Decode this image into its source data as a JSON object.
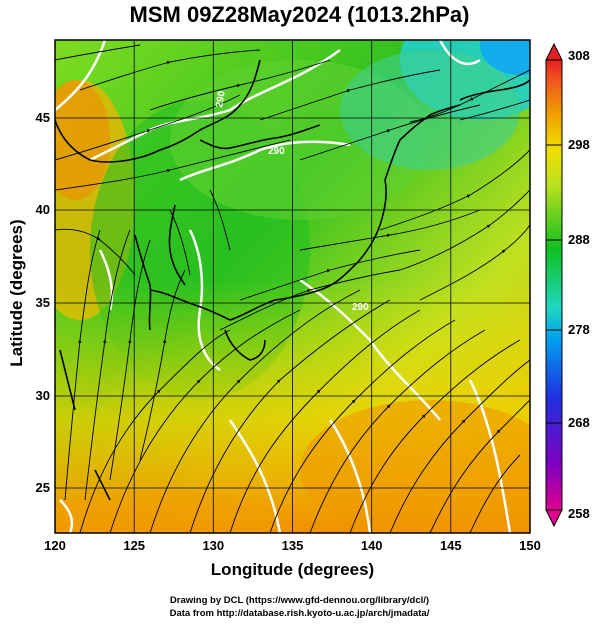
{
  "title": "MSM 09Z28May2024 (1013.2hPa)",
  "map": {
    "xlabel": "Longitude (degrees)",
    "ylabel": "Latitude  (degrees)",
    "lon_range": [
      120,
      150
    ],
    "lat_range": [
      22.6,
      47.8
    ],
    "lon_ticks": [
      "120",
      "125",
      "130",
      "135",
      "140",
      "145",
      "150"
    ],
    "lat_ticks": [
      "25",
      "30",
      "35",
      "40",
      "45"
    ],
    "grid": true,
    "contour_labels": [
      "290",
      "290",
      "290"
    ]
  },
  "colorbar": {
    "ticks": [
      "308",
      "298",
      "288",
      "278",
      "268",
      "258"
    ],
    "range": [
      258,
      308
    ],
    "colors": [
      "#e0008c",
      "#8000c0",
      "#2030e0",
      "#00a0f0",
      "#20d8c0",
      "#10c020",
      "#b8e020",
      "#f0e000",
      "#f0a000",
      "#f05020",
      "#e02020"
    ]
  },
  "footer": {
    "line1": "Drawing by DCL (https://www.gfd-dennou.org/library/dcl/)",
    "line2": "Data from http://database.rish.kyoto-u.ac.jp/arch/jmadata/"
  }
}
